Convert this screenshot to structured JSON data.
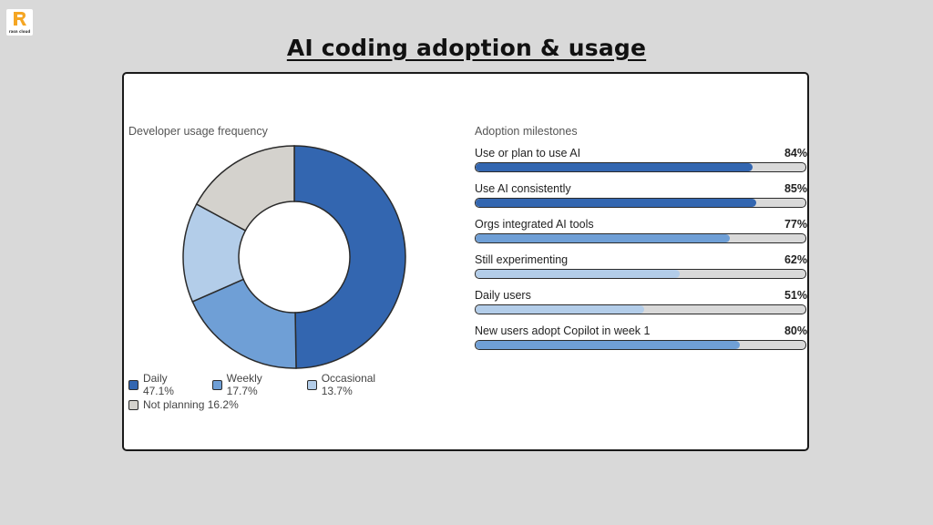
{
  "logo": {
    "text": "rasn cloud",
    "color": "#f5a623"
  },
  "title": "AI coding adoption & usage",
  "colors": {
    "daily": "#3366b0",
    "weekly": "#6f9fd6",
    "occasional": "#b3cde9",
    "not_planning": "#d4d2cd",
    "track": "#d9d9d9"
  },
  "chart_data": [
    {
      "type": "pie",
      "title": "Developer usage frequency",
      "donut": true,
      "slices": [
        {
          "label": "Daily",
          "value": 47.1,
          "legend": "Daily 47.1%",
          "color": "#3366b0"
        },
        {
          "label": "Weekly",
          "value": 17.7,
          "legend": "Weekly 17.7%",
          "color": "#6f9fd6"
        },
        {
          "label": "Occasional",
          "value": 13.7,
          "legend": "Occasional 13.7%",
          "color": "#b3cde9"
        },
        {
          "label": "Not planning",
          "value": 16.2,
          "legend": "Not planning 16.2%",
          "color": "#d4d2cd"
        }
      ],
      "legend_placement": "bottom-left"
    },
    {
      "type": "bar",
      "orientation": "horizontal",
      "title": "Adoption milestones",
      "categories": [
        "Use or plan to use AI",
        "Use AI consistently",
        "Orgs integrated AI tools",
        "Still experimenting",
        "Daily users",
        "New users adopt Copilot in week 1"
      ],
      "values": [
        84,
        85,
        77,
        62,
        51,
        80
      ],
      "value_labels": [
        "84%",
        "85%",
        "77%",
        "62%",
        "51%",
        "80%"
      ],
      "colors": [
        "#3366b0",
        "#3366b0",
        "#6f9fd6",
        "#b3cde9",
        "#b3cde9",
        "#6f9fd6"
      ],
      "xlim": [
        0,
        100
      ]
    }
  ]
}
